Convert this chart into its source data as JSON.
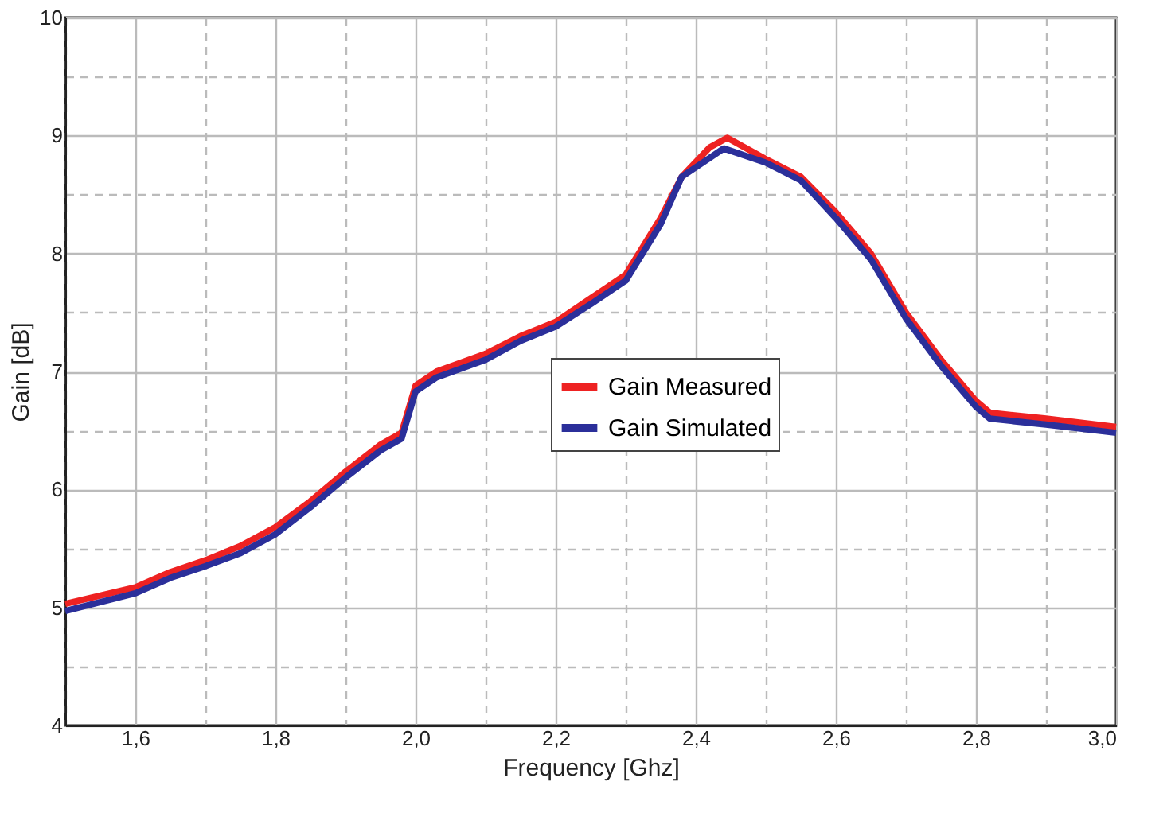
{
  "chart_data": {
    "type": "line",
    "xlabel": "Frequency [Ghz]",
    "ylabel": "Gain [dB]",
    "xlim": [
      1.5,
      3.0
    ],
    "ylim": [
      4,
      10
    ],
    "xticks": [
      {
        "value": 1.5,
        "label": null
      },
      {
        "value": 1.6,
        "label": "1,6"
      },
      {
        "value": 1.7,
        "label": null
      },
      {
        "value": 1.8,
        "label": "1,8"
      },
      {
        "value": 1.9,
        "label": null
      },
      {
        "value": 2.0,
        "label": "2,0"
      },
      {
        "value": 2.1,
        "label": null
      },
      {
        "value": 2.2,
        "label": "2,2"
      },
      {
        "value": 2.3,
        "label": null
      },
      {
        "value": 2.4,
        "label": "2,4"
      },
      {
        "value": 2.5,
        "label": null
      },
      {
        "value": 2.6,
        "label": "2,6"
      },
      {
        "value": 2.7,
        "label": null
      },
      {
        "value": 2.8,
        "label": "2,8"
      },
      {
        "value": 2.9,
        "label": null
      },
      {
        "value": 3.0,
        "label": "3,0"
      }
    ],
    "yticks": [
      4,
      {
        "value": 4.5,
        "label": null
      },
      5,
      {
        "value": 5.5,
        "label": null
      },
      6,
      {
        "value": 6.5,
        "label": null
      },
      7,
      {
        "value": 7.5,
        "label": null
      },
      8,
      {
        "value": 8.5,
        "label": null
      },
      9,
      {
        "value": 9.5,
        "label": null
      },
      10
    ],
    "grid": true,
    "legend": "center",
    "marker": "none",
    "line_style": "solid",
    "series": [
      {
        "name": "Gain Measured",
        "color": "#ee2222",
        "x": [
          1.5,
          1.6,
          1.65,
          1.7,
          1.75,
          1.8,
          1.85,
          1.9,
          1.95,
          1.98,
          2.0,
          2.03,
          2.1,
          2.15,
          2.2,
          2.25,
          2.3,
          2.35,
          2.38,
          2.42,
          2.445,
          2.5,
          2.55,
          2.6,
          2.65,
          2.7,
          2.75,
          2.8,
          2.82,
          2.9,
          3.0
        ],
        "values": [
          5.03,
          5.17,
          5.3,
          5.4,
          5.52,
          5.68,
          5.9,
          6.15,
          6.38,
          6.48,
          6.88,
          7.0,
          7.15,
          7.3,
          7.42,
          7.62,
          7.82,
          8.3,
          8.65,
          8.9,
          8.98,
          8.8,
          8.65,
          8.35,
          8.0,
          7.5,
          7.1,
          6.75,
          6.65,
          6.6,
          6.53
        ]
      },
      {
        "name": "Gain Simulated",
        "color": "#2b2f9a",
        "x": [
          1.5,
          1.6,
          1.65,
          1.7,
          1.75,
          1.8,
          1.85,
          1.9,
          1.95,
          1.98,
          2.0,
          2.03,
          2.1,
          2.15,
          2.2,
          2.25,
          2.3,
          2.35,
          2.38,
          2.44,
          2.5,
          2.55,
          2.6,
          2.65,
          2.7,
          2.75,
          2.8,
          2.82,
          2.9,
          3.0
        ],
        "values": [
          4.97,
          5.12,
          5.25,
          5.35,
          5.46,
          5.62,
          5.85,
          6.1,
          6.33,
          6.43,
          6.83,
          6.95,
          7.1,
          7.26,
          7.38,
          7.57,
          7.77,
          8.25,
          8.65,
          8.89,
          8.77,
          8.62,
          8.3,
          7.95,
          7.45,
          7.05,
          6.7,
          6.6,
          6.55,
          6.48
        ]
      }
    ]
  }
}
